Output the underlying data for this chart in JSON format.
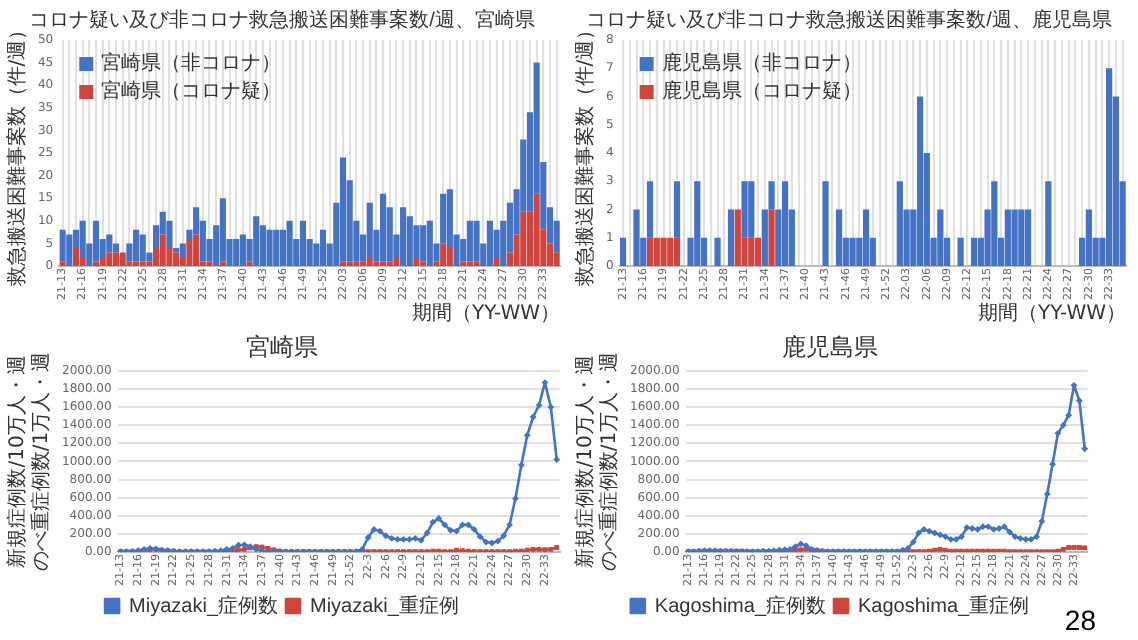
{
  "chart_data": [
    {
      "type": "bar",
      "stacked": true,
      "title": "コロナ疑い及び非コロナ救急搬送困難事案数/週、宮崎県",
      "xlabel": "期間（YY-WW）",
      "ylabel": "救急搬送困難事案数（件/週）",
      "categories": [
        "21-13",
        null,
        null,
        "21-16",
        null,
        null,
        "21-19",
        null,
        null,
        "21-22",
        null,
        null,
        "21-25",
        null,
        null,
        "21-28",
        null,
        null,
        "21-31",
        null,
        null,
        "21-34",
        null,
        null,
        "21-37",
        null,
        null,
        "21-40",
        null,
        null,
        "21-43",
        null,
        null,
        "21-46",
        null,
        null,
        "21-49",
        null,
        null,
        "21-52",
        null,
        null,
        "22-03",
        null,
        null,
        "22-06",
        null,
        null,
        "22-09",
        null,
        null,
        "22-12",
        null,
        null,
        "22-15",
        null,
        null,
        "22-18",
        null,
        null,
        "22-21",
        null,
        null,
        "22-24",
        null,
        null,
        "22-27",
        null,
        null,
        "22-30",
        null,
        null,
        "22-33",
        null,
        null
      ],
      "series": [
        {
          "name": "宮崎県（コロナ疑）",
          "color": "#d0443e",
          "values": [
            1,
            0,
            4,
            2,
            0,
            1,
            2,
            3,
            3,
            3,
            1,
            1,
            1,
            1,
            4,
            7,
            4,
            3,
            2,
            6,
            7,
            1,
            1,
            0,
            1,
            0,
            0,
            0,
            1,
            0,
            0,
            0,
            0,
            0,
            0,
            0,
            0,
            0,
            0,
            0,
            0,
            0,
            1,
            1,
            1,
            1,
            2,
            1,
            1,
            1,
            2,
            0,
            0,
            2,
            1,
            0,
            1,
            5,
            4,
            0,
            1,
            1,
            1,
            0,
            0,
            2,
            0,
            3,
            7,
            12,
            12,
            16,
            8,
            5,
            3
          ]
        },
        {
          "name": "宮崎県（非コロナ）",
          "color": "#4472c4",
          "values": [
            7,
            7,
            4,
            8,
            5,
            9,
            4,
            4,
            2,
            0,
            4,
            7,
            6,
            2,
            5,
            5,
            6,
            1,
            3,
            2,
            6,
            9,
            5,
            9,
            14,
            6,
            6,
            7,
            5,
            11,
            9,
            8,
            8,
            8,
            10,
            6,
            10,
            6,
            5,
            8,
            5,
            14,
            23,
            18,
            9,
            6,
            12,
            7,
            15,
            12,
            5,
            13,
            11,
            7,
            8,
            10,
            4,
            11,
            13,
            7,
            5,
            9,
            9,
            5,
            10,
            6,
            10,
            11,
            10,
            16,
            22,
            29,
            15,
            8,
            7
          ]
        }
      ],
      "ylim": [
        0,
        50
      ],
      "yticks": [
        0,
        5,
        10,
        15,
        20,
        25,
        30,
        35,
        40,
        45,
        50
      ],
      "grid": "x",
      "legend": "top left"
    },
    {
      "type": "bar",
      "stacked": true,
      "title": "コロナ疑い及び非コロナ救急搬送困難事案数/週、鹿児島県",
      "xlabel": "期間（YY-WW）",
      "ylabel": "救急搬送困難事案数（件/週）",
      "categories": [
        "21-13",
        null,
        null,
        "21-16",
        null,
        null,
        "21-19",
        null,
        null,
        "21-22",
        null,
        null,
        "21-25",
        null,
        null,
        "21-28",
        null,
        null,
        "21-31",
        null,
        null,
        "21-34",
        null,
        null,
        "21-37",
        null,
        null,
        "21-40",
        null,
        null,
        "21-43",
        null,
        null,
        "21-46",
        null,
        null,
        "21-49",
        null,
        null,
        "21-52",
        null,
        null,
        "22-03",
        null,
        null,
        "22-06",
        null,
        null,
        "22-09",
        null,
        null,
        "22-12",
        null,
        null,
        "22-15",
        null,
        null,
        "22-18",
        null,
        null,
        "22-21",
        null,
        null,
        "22-24",
        null,
        null,
        "22-27",
        null,
        null,
        "22-30",
        null,
        null,
        "22-33",
        null,
        null
      ],
      "series": [
        {
          "name": "鹿児島県（コロナ疑）",
          "color": "#d0443e",
          "values": [
            0,
            0,
            0,
            0,
            1,
            1,
            1,
            1,
            1,
            0,
            0,
            0,
            0,
            0,
            0,
            0,
            0,
            2,
            1,
            1,
            1,
            0,
            2,
            0,
            0,
            0,
            0,
            0,
            0,
            0,
            0,
            0,
            0,
            0,
            0,
            0,
            0,
            0,
            0,
            0,
            0,
            0,
            0,
            0,
            0,
            0,
            0,
            0,
            0,
            0,
            0,
            0,
            0,
            0,
            0,
            0,
            0,
            0,
            0,
            0,
            0,
            0,
            0,
            0,
            0,
            0,
            0,
            0,
            0,
            0,
            0,
            0,
            0,
            0,
            0
          ]
        },
        {
          "name": "鹿児島県（非コロナ）",
          "color": "#4472c4",
          "values": [
            1,
            0,
            2,
            1,
            2,
            0,
            0,
            0,
            2,
            0,
            1,
            3,
            1,
            0,
            1,
            0,
            2,
            0,
            2,
            2,
            0,
            2,
            1,
            2,
            3,
            2,
            0,
            0,
            0,
            0,
            3,
            0,
            2,
            1,
            1,
            1,
            2,
            1,
            0,
            0,
            0,
            3,
            2,
            2,
            6,
            4,
            1,
            2,
            1,
            0,
            1,
            0,
            1,
            1,
            2,
            3,
            1,
            2,
            2,
            2,
            2,
            0,
            0,
            3,
            0,
            0,
            0,
            0,
            1,
            2,
            1,
            1,
            7,
            6,
            3
          ]
        }
      ],
      "ylim": [
        0,
        8
      ],
      "yticks": [
        0,
        1,
        2,
        3,
        4,
        5,
        6,
        7,
        8
      ],
      "grid": "x",
      "legend": "top left"
    },
    {
      "type": "line",
      "title": "宮崎県",
      "ylabel": "新規症例数/10万人・週のべ重症例数/1万人・週",
      "categories": [
        "21-13",
        null,
        null,
        "21-16",
        null,
        null,
        "21-19",
        null,
        null,
        "21-22",
        null,
        null,
        "21-25",
        null,
        null,
        "21-28",
        null,
        null,
        "21-31",
        null,
        null,
        "21-34",
        null,
        null,
        "21-37",
        null,
        null,
        "21-40",
        null,
        null,
        "21-43",
        null,
        null,
        "21-46",
        null,
        null,
        "21-49",
        null,
        null,
        "21-52",
        null,
        null,
        "22-3",
        null,
        null,
        "22-6",
        null,
        null,
        "22-9",
        null,
        null,
        "22-12",
        null,
        null,
        "22-15",
        null,
        null,
        "22-18",
        null,
        null,
        "22-21",
        null,
        null,
        "22-24",
        null,
        null,
        "22-27",
        null,
        null,
        "22-30",
        null,
        null,
        "22-33",
        null,
        null
      ],
      "series": [
        {
          "name": "Miyazaki_症例数",
          "color": "#4472c4",
          "marker": "diamond",
          "values": [
            5,
            5,
            8,
            15,
            30,
            40,
            35,
            20,
            15,
            10,
            5,
            5,
            5,
            5,
            5,
            5,
            10,
            15,
            30,
            40,
            75,
            80,
            60,
            30,
            15,
            5,
            3,
            2,
            2,
            2,
            2,
            2,
            2,
            2,
            2,
            2,
            2,
            2,
            2,
            2,
            5,
            30,
            160,
            250,
            230,
            180,
            150,
            140,
            140,
            140,
            150,
            130,
            210,
            330,
            370,
            300,
            240,
            230,
            300,
            300,
            250,
            170,
            110,
            100,
            120,
            180,
            300,
            590,
            960,
            1290,
            1490,
            1620,
            1870,
            1600,
            1020
          ]
        },
        {
          "name": "Miyazaki_重症例",
          "color": "#d0443e",
          "marker": "square",
          "values": [
            5,
            5,
            5,
            10,
            15,
            25,
            30,
            20,
            15,
            10,
            5,
            5,
            5,
            5,
            5,
            5,
            5,
            5,
            10,
            15,
            20,
            30,
            45,
            60,
            55,
            40,
            25,
            10,
            5,
            5,
            5,
            5,
            5,
            5,
            5,
            5,
            5,
            5,
            5,
            5,
            5,
            5,
            5,
            5,
            5,
            5,
            5,
            5,
            5,
            5,
            5,
            5,
            5,
            10,
            10,
            5,
            5,
            20,
            15,
            10,
            5,
            5,
            5,
            5,
            5,
            5,
            5,
            10,
            10,
            20,
            30,
            30,
            25,
            30,
            50
          ]
        }
      ],
      "ylim": [
        0,
        2000
      ],
      "yticks": [
        {
          "value": 0,
          "label": "0.00"
        },
        {
          "value": 200,
          "label": "200.00"
        },
        {
          "value": 400,
          "label": "400.00"
        },
        {
          "value": 600,
          "label": "600.00"
        },
        {
          "value": 800,
          "label": "800.00"
        },
        {
          "value": 1000,
          "label": "1000.00"
        },
        {
          "value": 1200,
          "label": "1200.00"
        },
        {
          "value": 1400,
          "label": "1400.00"
        },
        {
          "value": 1600,
          "label": "1600.00"
        },
        {
          "value": 1800,
          "label": "1800.00"
        },
        {
          "value": 2000,
          "label": "2000.00"
        }
      ],
      "grid": "y",
      "legend": "bottom"
    },
    {
      "type": "line",
      "title": "鹿児島県",
      "ylabel": "新規症例数/10万人・週のべ重症例数/1万人・週",
      "categories": [
        "21-13",
        null,
        null,
        "21-16",
        null,
        null,
        "21-19",
        null,
        null,
        "21-22",
        null,
        null,
        "21-25",
        null,
        null,
        "21-28",
        null,
        null,
        "21-31",
        null,
        null,
        "21-34",
        null,
        null,
        "21-37",
        null,
        null,
        "21-40",
        null,
        null,
        "21-43",
        null,
        null,
        "21-46",
        null,
        null,
        "21-49",
        null,
        null,
        "21-52",
        null,
        null,
        "22-3",
        null,
        null,
        "22-6",
        null,
        null,
        "22-9",
        null,
        null,
        "22-12",
        null,
        null,
        "22-15",
        null,
        null,
        "22-18",
        null,
        null,
        "22-21",
        null,
        null,
        "22-24",
        null,
        null,
        "22-27",
        null,
        null,
        "22-30",
        null,
        null,
        "22-33",
        null,
        null
      ],
      "series": [
        {
          "name": "Kagoshima_症例数",
          "color": "#4472c4",
          "marker": "diamond",
          "values": [
            5,
            5,
            10,
            15,
            15,
            15,
            10,
            10,
            10,
            5,
            5,
            5,
            5,
            5,
            10,
            10,
            15,
            20,
            25,
            30,
            60,
            90,
            70,
            30,
            15,
            10,
            5,
            5,
            5,
            5,
            5,
            5,
            5,
            5,
            5,
            5,
            5,
            5,
            5,
            5,
            20,
            40,
            110,
            210,
            250,
            230,
            210,
            190,
            170,
            140,
            140,
            170,
            270,
            260,
            250,
            280,
            280,
            250,
            260,
            280,
            220,
            170,
            150,
            140,
            140,
            170,
            340,
            640,
            970,
            1310,
            1400,
            1510,
            1840,
            1670,
            1140
          ]
        },
        {
          "name": "Kagoshima_重症例",
          "color": "#d0443e",
          "marker": "square",
          "values": [
            5,
            5,
            10,
            10,
            10,
            10,
            10,
            10,
            10,
            10,
            10,
            5,
            5,
            5,
            5,
            5,
            5,
            10,
            15,
            15,
            20,
            25,
            30,
            25,
            20,
            10,
            5,
            5,
            5,
            5,
            5,
            5,
            5,
            5,
            5,
            5,
            5,
            5,
            5,
            5,
            5,
            5,
            5,
            5,
            5,
            10,
            20,
            30,
            20,
            10,
            10,
            10,
            10,
            10,
            10,
            10,
            10,
            10,
            10,
            10,
            5,
            5,
            5,
            5,
            5,
            5,
            5,
            5,
            5,
            10,
            30,
            50,
            50,
            50,
            45
          ]
        }
      ],
      "ylim": [
        0,
        2000
      ],
      "yticks": [
        {
          "value": 0,
          "label": "0.00"
        },
        {
          "value": 200,
          "label": "200.00"
        },
        {
          "value": 400,
          "label": "400.00"
        },
        {
          "value": 600,
          "label": "600.00"
        },
        {
          "value": 800,
          "label": "800.00"
        },
        {
          "value": 1000,
          "label": "1000.00"
        },
        {
          "value": 1200,
          "label": "1200.00"
        },
        {
          "value": 1400,
          "label": "1400.00"
        },
        {
          "value": 1600,
          "label": "1600.00"
        },
        {
          "value": 1800,
          "label": "1800.00"
        },
        {
          "value": 2000,
          "label": "2000.00"
        }
      ],
      "grid": "y",
      "legend": "bottom",
      "annotations": [
        "28"
      ]
    }
  ]
}
